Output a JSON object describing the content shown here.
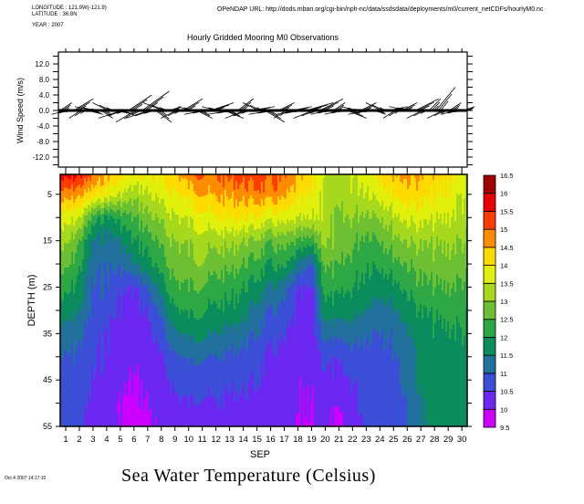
{
  "header": {
    "longitude": "LONGITUDE : 121.9W(-121.9)",
    "latitude": "LATITUDE : 36.8N",
    "year": "YEAR : 2007",
    "url": "OPeNDAP URL: http://dods.mbari.org/cgi-bin/nph-nc/data/ssdsdata/deployments/m0/current_netCDFs/hourlyM0.nc",
    "title": "Hourly Gridded Mooring M0 Observations"
  },
  "footer": {
    "timestamp": "Oct 4 2007 14:17:10",
    "title": "Sea Water Temperature (Celsius)"
  },
  "chart_data": [
    {
      "type": "stick",
      "title": "Hourly Gridded Mooring M0 Observations",
      "ylabel": "Wind Speed (m/s)",
      "ylim": [
        -15,
        15
      ],
      "yticks": [
        12,
        8,
        4,
        0,
        -4,
        -8,
        -12
      ],
      "ytick_labels": [
        "12.0",
        "8.0",
        "4.0",
        "0.0",
        "-4.0",
        "-8.0",
        "-12.0"
      ],
      "x_start_day": 0.6,
      "x_step_day": 0.5,
      "uv": [
        [
          3,
          2
        ],
        [
          -4,
          -1
        ],
        [
          5,
          3
        ],
        [
          -3,
          -2
        ],
        [
          4,
          -1
        ],
        [
          -5,
          1
        ],
        [
          3,
          -2
        ],
        [
          -4,
          2
        ],
        [
          5,
          -1
        ],
        [
          -6,
          -2
        ],
        [
          6,
          4
        ],
        [
          -5,
          -3
        ],
        [
          7,
          5
        ],
        [
          -6,
          -2
        ],
        [
          4,
          -3
        ],
        [
          -5,
          2
        ],
        [
          3,
          1
        ],
        [
          -4,
          -2
        ],
        [
          5,
          3
        ],
        [
          -3,
          1
        ],
        [
          4,
          -2
        ],
        [
          -5,
          -1
        ],
        [
          6,
          2
        ],
        [
          -4,
          1
        ],
        [
          5,
          -2
        ],
        [
          -6,
          -1
        ],
        [
          4,
          3
        ],
        [
          -5,
          -2
        ],
        [
          6,
          1
        ],
        [
          -4,
          2
        ],
        [
          5,
          -3
        ],
        [
          -6,
          -1
        ],
        [
          4,
          2
        ],
        [
          -3,
          -2
        ],
        [
          5,
          1
        ],
        [
          -6,
          -1
        ],
        [
          7,
          2
        ],
        [
          -5,
          -2
        ],
        [
          6,
          3
        ],
        [
          -4,
          -1
        ],
        [
          3,
          2
        ],
        [
          -4,
          -1
        ],
        [
          5,
          -2
        ],
        [
          -3,
          1
        ],
        [
          4,
          2
        ],
        [
          -5,
          -1
        ],
        [
          3,
          -1
        ],
        [
          -4,
          2
        ],
        [
          5,
          1
        ],
        [
          -3,
          -2
        ],
        [
          4,
          2
        ],
        [
          -5,
          1
        ],
        [
          6,
          3
        ],
        [
          -4,
          -2
        ],
        [
          3,
          3
        ],
        [
          5,
          6
        ],
        [
          -4,
          -2
        ],
        [
          3,
          2
        ],
        [
          -4,
          -1
        ],
        [
          3,
          1
        ]
      ]
    },
    {
      "type": "heatmap",
      "title": "Sea Water Temperature (Celsius)",
      "xlabel": "SEP",
      "ylabel": "DEPTH (m)",
      "x_days": [
        1,
        2,
        3,
        4,
        5,
        6,
        7,
        8,
        9,
        10,
        11,
        12,
        13,
        14,
        15,
        16,
        17,
        18,
        19,
        20,
        21,
        22,
        23,
        24,
        25,
        26,
        27,
        28,
        29,
        30
      ],
      "xtick_labels": [
        "1",
        "2",
        "3",
        "4",
        "5",
        "6",
        "7",
        "8",
        "9",
        "10",
        "11",
        "12",
        "13",
        "14",
        "15",
        "16",
        "17",
        "18",
        "19",
        "20",
        "21",
        "22",
        "23",
        "24",
        "25",
        "26",
        "27",
        "28",
        "29",
        "30"
      ],
      "depths": [
        1,
        5,
        10,
        15,
        20,
        25,
        30,
        35,
        40,
        45,
        50,
        55
      ],
      "ylim": [
        55,
        0.7
      ],
      "yticks": [
        5,
        15,
        25,
        35,
        45,
        55
      ],
      "ytick_labels": [
        "5",
        "15",
        "25",
        "35",
        "45",
        "55"
      ],
      "values": [
        [
          15.7,
          14.8,
          13.8,
          13.2,
          12.7,
          12.2,
          11.8,
          11.3,
          11.0,
          10.9,
          10.8,
          10.7
        ],
        [
          15.5,
          14.6,
          13.5,
          12.5,
          12.1,
          11.8,
          11.5,
          11.1,
          10.9,
          10.8,
          10.7,
          10.6
        ],
        [
          15.0,
          14.2,
          12.3,
          11.5,
          11.2,
          11.0,
          10.9,
          10.7,
          10.6,
          10.5,
          10.4,
          10.3
        ],
        [
          14.5,
          13.8,
          11.8,
          11.3,
          11.1,
          10.9,
          10.7,
          10.5,
          10.4,
          10.3,
          10.2,
          10.2
        ],
        [
          14.2,
          13.5,
          12.2,
          11.5,
          11.1,
          10.6,
          10.4,
          10.3,
          10.2,
          10.1,
          10.0,
          10.0
        ],
        [
          13.9,
          13.2,
          12.5,
          12.0,
          11.5,
          10.5,
          10.3,
          10.2,
          10.1,
          10.0,
          9.9,
          9.8
        ],
        [
          13.9,
          13.4,
          12.8,
          12.2,
          11.8,
          11.0,
          10.5,
          10.3,
          10.2,
          10.1,
          10.0,
          9.9
        ],
        [
          14.2,
          13.8,
          13.2,
          12.7,
          12.3,
          11.8,
          11.2,
          10.8,
          10.5,
          10.3,
          10.2,
          10.1
        ],
        [
          14.3,
          13.9,
          13.4,
          13.0,
          12.7,
          12.4,
          11.9,
          11.4,
          10.9,
          10.6,
          10.4,
          10.2
        ],
        [
          14.8,
          14.2,
          13.6,
          13.1,
          12.8,
          12.5,
          12.1,
          11.6,
          11.1,
          10.7,
          10.5,
          10.3
        ],
        [
          14.9,
          14.4,
          13.7,
          13.2,
          12.9,
          12.4,
          12.0,
          11.6,
          11.0,
          10.6,
          10.4,
          10.3
        ],
        [
          15.0,
          14.6,
          14.0,
          13.2,
          12.7,
          12.3,
          11.9,
          11.5,
          11.0,
          10.7,
          10.5,
          10.4
        ],
        [
          15.1,
          14.6,
          14.0,
          13.2,
          12.7,
          12.2,
          11.9,
          11.3,
          10.9,
          10.6,
          10.4,
          10.3
        ],
        [
          15.2,
          14.7,
          14.0,
          13.0,
          12.5,
          12.0,
          11.7,
          11.2,
          10.8,
          10.6,
          10.4,
          10.3
        ],
        [
          15.3,
          14.8,
          13.9,
          12.9,
          12.3,
          11.8,
          11.3,
          11.0,
          10.7,
          10.5,
          10.4,
          10.3
        ],
        [
          15.2,
          14.8,
          13.7,
          12.6,
          12.0,
          11.5,
          11.0,
          10.7,
          10.4,
          10.3,
          10.2,
          10.1
        ],
        [
          15.1,
          14.7,
          13.8,
          12.8,
          12.2,
          11.3,
          10.9,
          10.6,
          10.4,
          10.3,
          10.2,
          10.1
        ],
        [
          14.6,
          14.2,
          13.6,
          12.5,
          11.5,
          10.6,
          10.4,
          10.3,
          10.2,
          10.1,
          10.1,
          10.0
        ],
        [
          14.3,
          14.0,
          13.6,
          12.3,
          11.0,
          10.5,
          10.3,
          10.2,
          10.1,
          10.1,
          10.0,
          10.0
        ],
        [
          13.3,
          13.3,
          13.3,
          13.1,
          12.6,
          12.2,
          11.8,
          11.2,
          10.6,
          10.4,
          10.1,
          10.1
        ],
        [
          13.3,
          13.3,
          13.0,
          12.9,
          12.6,
          12.2,
          11.8,
          11.2,
          10.6,
          10.4,
          10.1,
          9.8
        ],
        [
          13.5,
          13.3,
          13.0,
          12.6,
          12.3,
          12.0,
          11.7,
          11.2,
          10.8,
          10.5,
          10.4,
          10.3
        ],
        [
          13.6,
          13.4,
          12.8,
          12.3,
          12.0,
          11.8,
          11.4,
          11.0,
          10.8,
          10.7,
          10.6,
          10.5
        ],
        [
          14.0,
          13.6,
          12.9,
          12.4,
          12.0,
          11.6,
          11.2,
          10.9,
          10.8,
          10.7,
          10.7,
          10.7
        ],
        [
          14.4,
          14.0,
          13.3,
          12.8,
          12.3,
          11.8,
          11.4,
          11.1,
          10.9,
          10.8,
          10.8,
          10.8
        ],
        [
          14.6,
          14.2,
          13.6,
          13.0,
          12.5,
          12.1,
          11.7,
          11.4,
          11.2,
          11.1,
          11.0,
          11.0
        ],
        [
          14.5,
          14.2,
          13.7,
          13.1,
          12.7,
          12.4,
          12.0,
          11.8,
          11.6,
          11.6,
          11.5,
          11.5
        ],
        [
          14.3,
          14.1,
          13.6,
          13.1,
          12.8,
          12.5,
          12.1,
          11.9,
          11.8,
          11.7,
          11.7,
          11.6
        ],
        [
          14.1,
          13.9,
          13.5,
          13.1,
          12.8,
          12.5,
          12.2,
          11.9,
          11.8,
          11.7,
          11.6,
          11.6
        ],
        [
          13.7,
          13.5,
          13.3,
          13.0,
          12.7,
          12.4,
          12.1,
          12.0,
          11.8,
          11.7,
          11.6,
          11.6
        ]
      ],
      "colorbar": {
        "levels": [
          9.5,
          10,
          10.5,
          11,
          11.5,
          12,
          12.5,
          13,
          13.5,
          14,
          14.5,
          15,
          15.5,
          16,
          16.5
        ],
        "level_labels": [
          "9.5",
          "10",
          "10.5",
          "11",
          "11.5",
          "12",
          "12.5",
          "13",
          "13.5",
          "14",
          "14.5",
          "15",
          "15.5",
          "16",
          "16.5"
        ],
        "colors": [
          "#cc00ff",
          "#6a28f0",
          "#3a4fd6",
          "#22709c",
          "#0a8c5c",
          "#2ea844",
          "#6cc032",
          "#a6d81e",
          "#e0f00a",
          "#ffda00",
          "#ff8c00",
          "#ff3c00",
          "#e80000",
          "#a00000"
        ]
      }
    }
  ]
}
